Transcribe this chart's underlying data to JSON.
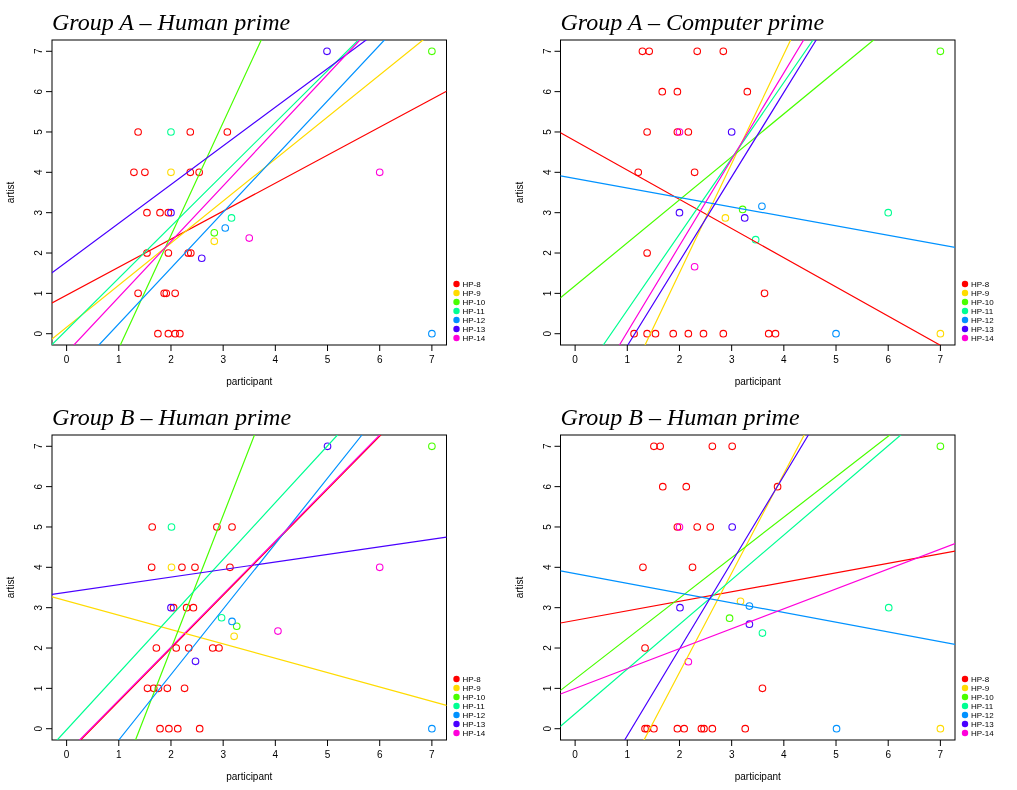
{
  "chart_data": [
    {
      "type": "scatter",
      "title": "Group A – Human prime",
      "xlabel": "participant",
      "ylabel": "artist",
      "xlim": [
        -0.28,
        7.28
      ],
      "ylim": [
        -0.28,
        7.28
      ],
      "xticks": [
        0,
        1,
        2,
        3,
        4,
        5,
        6,
        7
      ],
      "yticks": [
        0,
        1,
        2,
        3,
        4,
        5,
        6,
        7
      ],
      "marker": "circle",
      "legend": "bottom right",
      "series": [
        {
          "name": "HP-8",
          "color": "#ff0000",
          "x": [
            1.37,
            2.37,
            3.08,
            1.29,
            1.5,
            2.37,
            2.54,
            1.54,
            1.79,
            1.95,
            1.54,
            1.95,
            2.33,
            2.38,
            1.37,
            1.87,
            1.91,
            2.08,
            1.75,
            1.95,
            2.08,
            2.17
          ],
          "values": [
            5,
            5,
            5,
            4,
            4,
            4,
            4,
            3,
            3,
            3,
            2,
            2,
            2,
            2,
            1,
            1,
            1,
            1,
            0,
            0,
            0,
            0
          ]
        },
        {
          "name": "HP-9",
          "color": "#ffdb00",
          "x": [
            2.0,
            2.83
          ],
          "values": [
            4,
            2.29
          ]
        },
        {
          "name": "HP-10",
          "color": "#49ff00",
          "x": [
            2.83,
            7
          ],
          "values": [
            2.5,
            7
          ]
        },
        {
          "name": "HP-11",
          "color": "#00ff92",
          "x": [
            2,
            3.16
          ],
          "values": [
            5,
            2.87
          ]
        },
        {
          "name": "HP-12",
          "color": "#0092ff",
          "x": [
            3.04,
            7
          ],
          "values": [
            2.62,
            0
          ]
        },
        {
          "name": "HP-13",
          "color": "#4900ff",
          "x": [
            2.0,
            2.59,
            4.99
          ],
          "values": [
            3,
            1.87,
            7
          ]
        },
        {
          "name": "HP-14",
          "color": "#ff00db",
          "x": [
            3.5,
            6.0
          ],
          "values": [
            2.37,
            4
          ]
        },
        {
          "type": "line",
          "marker": "none",
          "color": "#ff0000",
          "x": [
            -0.28,
            7.28
          ],
          "values": [
            0.76,
            6.01
          ]
        },
        {
          "type": "line",
          "marker": "none",
          "color": "#ffdb00",
          "x": [
            -0.28,
            6.83
          ],
          "values": [
            -0.13,
            7.28
          ]
        },
        {
          "type": "line",
          "marker": "none",
          "color": "#49ff00",
          "x": [
            1.03,
            3.73
          ],
          "values": [
            -0.28,
            7.28
          ]
        },
        {
          "type": "line",
          "marker": "none",
          "color": "#00ff92",
          "x": [
            -0.28,
            5.59
          ],
          "values": [
            -0.27,
            7.28
          ]
        },
        {
          "type": "line",
          "marker": "none",
          "color": "#0092ff",
          "x": [
            0.62,
            6.09
          ],
          "values": [
            -0.28,
            7.28
          ]
        },
        {
          "type": "line",
          "marker": "none",
          "color": "#4900ff",
          "x": [
            -0.28,
            5.74
          ],
          "values": [
            1.51,
            7.28
          ]
        },
        {
          "type": "line",
          "marker": "none",
          "color": "#ff00db",
          "x": [
            0.14,
            5.62
          ],
          "values": [
            -0.28,
            7.28
          ]
        }
      ]
    },
    {
      "type": "scatter",
      "title": "Group A – Computer prime",
      "xlabel": "participant",
      "ylabel": "artist",
      "xlim": [
        -0.28,
        7.28
      ],
      "ylim": [
        -0.28,
        7.28
      ],
      "xticks": [
        0,
        1,
        2,
        3,
        4,
        5,
        6,
        7
      ],
      "yticks": [
        0,
        1,
        2,
        3,
        4,
        5,
        6,
        7
      ],
      "marker": "circle",
      "legend": "bottom right",
      "series": [
        {
          "name": "HP-8",
          "color": "#ff0000",
          "x": [
            1.29,
            1.42,
            2.34,
            2.84,
            1.67,
            1.96,
            3.3,
            1.38,
            1.96,
            2.17,
            1.21,
            2.29,
            1.38,
            3.63,
            1.13,
            1.38,
            1.54,
            1.88,
            2.17,
            2.46,
            2.84,
            3.71,
            3.84
          ],
          "values": [
            7,
            7,
            7,
            7,
            6,
            6,
            6,
            5,
            5,
            5,
            4,
            4,
            2,
            1,
            0,
            0,
            0,
            0,
            0,
            0,
            0,
            0,
            0
          ]
        },
        {
          "name": "HP-9",
          "color": "#ffdb00",
          "x": [
            2.88,
            7
          ],
          "values": [
            2.87,
            0
          ]
        },
        {
          "name": "HP-10",
          "color": "#49ff00",
          "x": [
            3.21,
            7
          ],
          "values": [
            3.08,
            7
          ]
        },
        {
          "name": "HP-11",
          "color": "#00ff92",
          "x": [
            3.46,
            6.0
          ],
          "values": [
            2.33,
            3
          ]
        },
        {
          "name": "HP-12",
          "color": "#0092ff",
          "x": [
            3.58,
            5.0
          ],
          "values": [
            3.16,
            0
          ]
        },
        {
          "name": "HP-13",
          "color": "#4900ff",
          "x": [
            2.0,
            3.0,
            3.25
          ],
          "values": [
            3,
            5,
            2.87
          ]
        },
        {
          "name": "HP-14",
          "color": "#ff00db",
          "x": [
            2.29,
            2.0
          ],
          "values": [
            1.66,
            5
          ]
        },
        {
          "type": "line",
          "marker": "none",
          "color": "#ff0000",
          "x": [
            -0.28,
            6.99
          ],
          "values": [
            4.98,
            -0.28
          ]
        },
        {
          "type": "line",
          "marker": "none",
          "color": "#ffdb00",
          "x": [
            1.34,
            4.13
          ],
          "values": [
            -0.28,
            7.28
          ]
        },
        {
          "type": "line",
          "marker": "none",
          "color": "#49ff00",
          "x": [
            -0.28,
            5.72
          ],
          "values": [
            0.89,
            7.28
          ]
        },
        {
          "type": "line",
          "marker": "none",
          "color": "#00ff92",
          "x": [
            0.54,
            4.56
          ],
          "values": [
            -0.28,
            7.28
          ]
        },
        {
          "type": "line",
          "marker": "none",
          "color": "#0092ff",
          "x": [
            -0.28,
            7.28
          ],
          "values": [
            3.91,
            2.14
          ]
        },
        {
          "type": "line",
          "marker": "none",
          "color": "#4900ff",
          "x": [
            1.01,
            4.62
          ],
          "values": [
            -0.28,
            7.28
          ]
        },
        {
          "type": "line",
          "marker": "none",
          "color": "#ff00db",
          "x": [
            0.85,
            4.38
          ],
          "values": [
            -0.28,
            7.28
          ]
        }
      ]
    },
    {
      "type": "scatter",
      "title": "Group B – Human prime",
      "xlabel": "participant",
      "ylabel": "artist",
      "xlim": [
        -0.28,
        7.28
      ],
      "ylim": [
        -0.28,
        7.28
      ],
      "xticks": [
        0,
        1,
        2,
        3,
        4,
        5,
        6,
        7
      ],
      "yticks": [
        0,
        1,
        2,
        3,
        4,
        5,
        6,
        7
      ],
      "marker": "circle",
      "legend": "bottom right",
      "series": [
        {
          "name": "HP-8",
          "color": "#ff0000",
          "x": [
            1.64,
            2.88,
            3.17,
            1.63,
            2.21,
            2.46,
            3.13,
            2.05,
            2.3,
            2.43,
            1.72,
            2.1,
            2.34,
            2.8,
            2.92,
            1.55,
            1.67,
            1.76,
            1.93,
            2.26,
            1.79,
            1.96,
            2.13,
            2.55
          ],
          "values": [
            5,
            5,
            5,
            4,
            4,
            4,
            4,
            3,
            3,
            3,
            2,
            2,
            2,
            2,
            2,
            1,
            1,
            1,
            1,
            1,
            0,
            0,
            0,
            0
          ]
        },
        {
          "name": "HP-9",
          "color": "#ffdb00",
          "x": [
            2.01,
            3.21
          ],
          "values": [
            4,
            2.29
          ]
        },
        {
          "name": "HP-10",
          "color": "#49ff00",
          "x": [
            3.26,
            7
          ],
          "values": [
            2.54,
            7
          ]
        },
        {
          "name": "HP-11",
          "color": "#00ff92",
          "x": [
            2.01,
            2.97
          ],
          "values": [
            5,
            2.75
          ]
        },
        {
          "name": "HP-12",
          "color": "#0092ff",
          "x": [
            3.17,
            7
          ],
          "values": [
            2.66,
            0
          ]
        },
        {
          "name": "HP-13",
          "color": "#4900ff",
          "x": [
            2.0,
            2.47,
            5.0
          ],
          "values": [
            3,
            1.67,
            7
          ]
        },
        {
          "name": "HP-14",
          "color": "#ff00db",
          "x": [
            4.05,
            6.0
          ],
          "values": [
            2.42,
            4
          ]
        },
        {
          "type": "line",
          "marker": "none",
          "color": "#ff0000",
          "x": [
            0.27,
            6.02
          ],
          "values": [
            -0.28,
            7.28
          ]
        },
        {
          "type": "line",
          "marker": "none",
          "color": "#ffdb00",
          "x": [
            -0.28,
            7.28
          ],
          "values": [
            3.27,
            0.58
          ]
        },
        {
          "type": "line",
          "marker": "none",
          "color": "#49ff00",
          "x": [
            1.32,
            3.6
          ],
          "values": [
            -0.28,
            7.28
          ]
        },
        {
          "type": "line",
          "marker": "none",
          "color": "#00ff92",
          "x": [
            -0.18,
            5.19
          ],
          "values": [
            -0.28,
            7.28
          ]
        },
        {
          "type": "line",
          "marker": "none",
          "color": "#0092ff",
          "x": [
            1.0,
            5.66
          ],
          "values": [
            -0.28,
            7.28
          ]
        },
        {
          "type": "line",
          "marker": "none",
          "color": "#4900ff",
          "x": [
            -0.28,
            7.28
          ],
          "values": [
            3.33,
            4.75
          ]
        },
        {
          "type": "line",
          "marker": "none",
          "color": "#ff00db",
          "x": [
            0.25,
            6.0
          ],
          "values": [
            -0.28,
            7.28
          ]
        }
      ]
    },
    {
      "type": "scatter",
      "title": "Group B – Human prime",
      "xlabel": "participant",
      "ylabel": "artist",
      "xlim": [
        -0.28,
        7.28
      ],
      "ylim": [
        -0.28,
        7.28
      ],
      "xticks": [
        0,
        1,
        2,
        3,
        4,
        5,
        6,
        7
      ],
      "yticks": [
        0,
        1,
        2,
        3,
        4,
        5,
        6,
        7
      ],
      "marker": "circle",
      "legend": "bottom right",
      "series": [
        {
          "name": "HP-8",
          "color": "#ff0000",
          "x": [
            1.51,
            1.63,
            2.63,
            3.01,
            1.68,
            2.13,
            3.88,
            1.96,
            2.34,
            2.59,
            1.3,
            2.25,
            1.34,
            3.59,
            1.34,
            1.38,
            1.51,
            1.96,
            2.09,
            2.42,
            2.47,
            2.63,
            3.26
          ],
          "values": [
            7,
            7,
            7,
            7,
            6,
            6,
            6,
            5,
            5,
            5,
            4,
            4,
            2,
            1,
            0,
            0,
            0,
            0,
            0,
            0,
            0,
            0,
            0
          ]
        },
        {
          "name": "HP-9",
          "color": "#ffdb00",
          "x": [
            3.17,
            7
          ],
          "values": [
            3.16,
            0
          ]
        },
        {
          "name": "HP-10",
          "color": "#49ff00",
          "x": [
            2.96,
            7
          ],
          "values": [
            2.74,
            7
          ]
        },
        {
          "name": "HP-11",
          "color": "#00ff92",
          "x": [
            3.59,
            6.01
          ],
          "values": [
            2.37,
            3
          ]
        },
        {
          "name": "HP-12",
          "color": "#0092ff",
          "x": [
            3.34,
            5.01
          ],
          "values": [
            3.04,
            0
          ]
        },
        {
          "name": "HP-13",
          "color": "#4900ff",
          "x": [
            2.01,
            3.01,
            3.34
          ],
          "values": [
            3,
            5,
            2.59
          ]
        },
        {
          "name": "HP-14",
          "color": "#ff00db",
          "x": [
            2.17,
            2.0
          ],
          "values": [
            1.66,
            5
          ]
        },
        {
          "type": "line",
          "marker": "none",
          "color": "#ff0000",
          "x": [
            -0.28,
            7.28
          ],
          "values": [
            2.62,
            4.4
          ]
        },
        {
          "type": "line",
          "marker": "none",
          "color": "#ffdb00",
          "x": [
            1.32,
            4.39
          ],
          "values": [
            -0.28,
            7.28
          ]
        },
        {
          "type": "line",
          "marker": "none",
          "color": "#49ff00",
          "x": [
            -0.28,
            6.03
          ],
          "values": [
            0.95,
            7.28
          ]
        },
        {
          "type": "line",
          "marker": "none",
          "color": "#00ff92",
          "x": [
            -0.28,
            6.24
          ],
          "values": [
            0.06,
            7.28
          ]
        },
        {
          "type": "line",
          "marker": "none",
          "color": "#0092ff",
          "x": [
            -0.28,
            7.28
          ],
          "values": [
            3.91,
            2.09
          ]
        },
        {
          "type": "line",
          "marker": "none",
          "color": "#4900ff",
          "x": [
            0.95,
            4.47
          ],
          "values": [
            -0.28,
            7.28
          ]
        },
        {
          "type": "line",
          "marker": "none",
          "color": "#ff00db",
          "x": [
            -0.28,
            7.28
          ],
          "values": [
            0.86,
            4.59
          ]
        }
      ]
    }
  ]
}
